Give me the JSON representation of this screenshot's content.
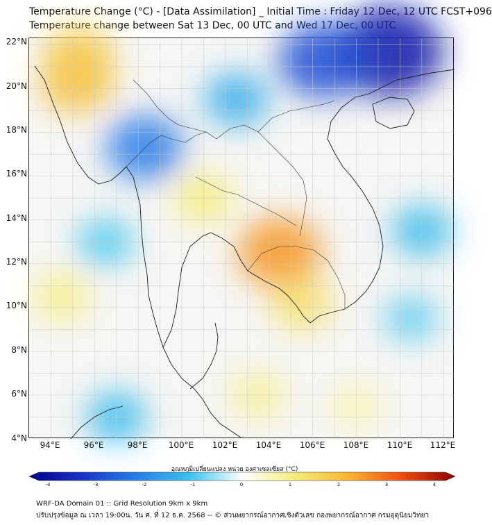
{
  "header": {
    "title_line1": "Temperature Change (°C) - [Data Assimilation] _ Initial Time : Friday 12 Dec, 12 UTC FCST+096",
    "title_line2": "Temperature change between Sat 13 Dec, 00 UTC and Wed 17 Dec, 00 UTC"
  },
  "map": {
    "lat_labels": [
      "22°N",
      "20°N",
      "18°N",
      "16°N",
      "14°N",
      "12°N",
      "10°N",
      "8°N",
      "6°N",
      "4°N"
    ],
    "lon_labels": [
      "94°E",
      "96°E",
      "98°E",
      "100°E",
      "102°E",
      "104°E",
      "106°E",
      "108°E",
      "110°E",
      "112°E"
    ],
    "lat_range": [
      4,
      22.3
    ],
    "lon_range": [
      93,
      112.5
    ],
    "anomalies": [
      {
        "name": "myanmar-west-warm",
        "lon": 95.2,
        "lat": 20.3,
        "value": 1.8
      },
      {
        "name": "myanmar-west-warm-2",
        "lon": 95.3,
        "lat": 21.5,
        "value": 1.6
      },
      {
        "name": "gulf-of-tonkin-cold",
        "lon": 109.5,
        "lat": 21.7,
        "value": -3.5
      },
      {
        "name": "yunnan-cold",
        "lon": 106.5,
        "lat": 21.3,
        "value": -2.6
      },
      {
        "name": "north-myanmar-cold",
        "lon": 98.3,
        "lat": 17.3,
        "value": -2.0
      },
      {
        "name": "laos-north-cold",
        "lon": 102.5,
        "lat": 19.5,
        "value": -1.3
      },
      {
        "name": "cambodia-warm",
        "lon": 104.5,
        "lat": 12.5,
        "value": 2.3
      },
      {
        "name": "mekong-delta-warm",
        "lon": 105.5,
        "lat": 10.2,
        "value": 1.2
      },
      {
        "name": "central-thailand-warm",
        "lon": 101,
        "lat": 15,
        "value": 1.0
      },
      {
        "name": "andaman-warm",
        "lon": 94.5,
        "lat": 10.5,
        "value": 0.9
      },
      {
        "name": "andaman-cold",
        "lon": 96.5,
        "lat": 13,
        "value": -0.9
      },
      {
        "name": "south-china-sea-cold",
        "lon": 111,
        "lat": 13.5,
        "value": -1.1
      },
      {
        "name": "gulf-south-warm",
        "lon": 103.5,
        "lat": 6.0,
        "value": 0.8
      },
      {
        "name": "sumatra-cold",
        "lon": 97,
        "lat": 5.0,
        "value": -1.1
      },
      {
        "name": "south-sea-warm",
        "lon": 108,
        "lat": 5.5,
        "value": 0.6
      },
      {
        "name": "east-vietnam-cold",
        "lon": 110.5,
        "lat": 9.5,
        "value": -0.8
      }
    ]
  },
  "colorbar": {
    "title": "อุณหภูมิเปลี่ยนแปลง หน่วย องศาเซลเซียส (°C)",
    "ticks": [
      "-4",
      "-3",
      "-2",
      "-1",
      "0",
      "1",
      "2",
      "3",
      "4"
    ],
    "colors": [
      "#00008b",
      "#1a33c8",
      "#2a7ce8",
      "#39c2ee",
      "#ffffff",
      "#f5ec7a",
      "#f8b530",
      "#f04c10",
      "#8b0000"
    ]
  },
  "footer": {
    "line1": "WRF-DA Domain 01 :: Grid Resolution 9km x 9km",
    "line2": "ปรับปรุงข้อมูล ณ เวลา 19:00น. วัน ศ. ที่ 12 ธ.ค. 2568 -- © ส่วนพยากรณ์อากาศเชิงตัวเลข กองพยากรณ์อากาศ กรมอุตุนิยมวิทยา"
  }
}
